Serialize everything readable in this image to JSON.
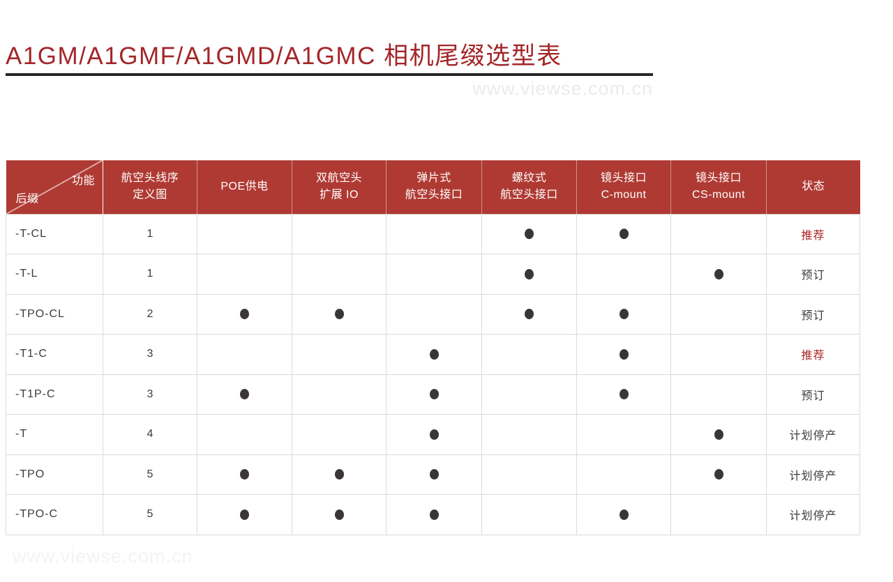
{
  "page": {
    "title": "A1GM/A1GMF/A1GMD/A1GMC 相机尾缀选型表",
    "watermark_top": "www.viewse.com.cn",
    "watermark_bottom": "www.viewse.com.cn"
  },
  "colors": {
    "title_red": "#A32629",
    "header_bg": "#AF3A33",
    "status_highlight_red": "#AC2420",
    "dot": "#3A3537",
    "body_text": "#3E393A",
    "grid_line": "#DBDBDB",
    "underline": "#2B2627"
  },
  "icons": {
    "dot_icon": "filled-circle ●"
  },
  "table": {
    "corner": {
      "top_right": "功能",
      "bottom_left": "后缀"
    },
    "columns": [
      {
        "key": "wiring-diagram",
        "lines": [
          "航空头线序",
          "定义图"
        ]
      },
      {
        "key": "poe",
        "lines": [
          "POE供电"
        ]
      },
      {
        "key": "dual-io",
        "lines": [
          "双航空头",
          "扩展 IO"
        ]
      },
      {
        "key": "spring-connector",
        "lines": [
          "弹片式",
          "航空头接口"
        ]
      },
      {
        "key": "threaded-connector",
        "lines": [
          "螺纹式",
          "航空头接口"
        ]
      },
      {
        "key": "c-mount",
        "lines": [
          "镜头接口",
          "C-mount"
        ]
      },
      {
        "key": "cs-mount",
        "lines": [
          "镜头接口",
          "CS-mount"
        ]
      },
      {
        "key": "status",
        "lines": [
          "状态"
        ]
      }
    ],
    "feature_keys": [
      "poe",
      "dual-io",
      "spring-connector",
      "threaded-connector",
      "c-mount",
      "cs-mount"
    ],
    "rows": [
      {
        "suffix": "-T-CL",
        "wiring": "1",
        "features": [
          false,
          false,
          false,
          true,
          true,
          false
        ],
        "status": "推荐",
        "highlight": true
      },
      {
        "suffix": "-T-L",
        "wiring": "1",
        "features": [
          false,
          false,
          false,
          true,
          false,
          true
        ],
        "status": "预订",
        "highlight": false
      },
      {
        "suffix": "-TPO-CL",
        "wiring": "2",
        "features": [
          true,
          true,
          false,
          true,
          true,
          false
        ],
        "status": "预订",
        "highlight": false
      },
      {
        "suffix": "-T1-C",
        "wiring": "3",
        "features": [
          false,
          false,
          true,
          false,
          true,
          false
        ],
        "status": "推荐",
        "highlight": true
      },
      {
        "suffix": "-T1P-C",
        "wiring": "3",
        "features": [
          true,
          false,
          true,
          false,
          true,
          false
        ],
        "status": "预订",
        "highlight": false
      },
      {
        "suffix": "-T",
        "wiring": "4",
        "features": [
          false,
          false,
          true,
          false,
          false,
          true
        ],
        "status": "计划停产",
        "highlight": false
      },
      {
        "suffix": "-TPO",
        "wiring": "5",
        "features": [
          true,
          true,
          true,
          false,
          false,
          true
        ],
        "status": "计划停产",
        "highlight": false
      },
      {
        "suffix": "-TPO-C",
        "wiring": "5",
        "features": [
          true,
          true,
          true,
          false,
          true,
          false
        ],
        "status": "计划停产",
        "highlight": false
      }
    ]
  }
}
